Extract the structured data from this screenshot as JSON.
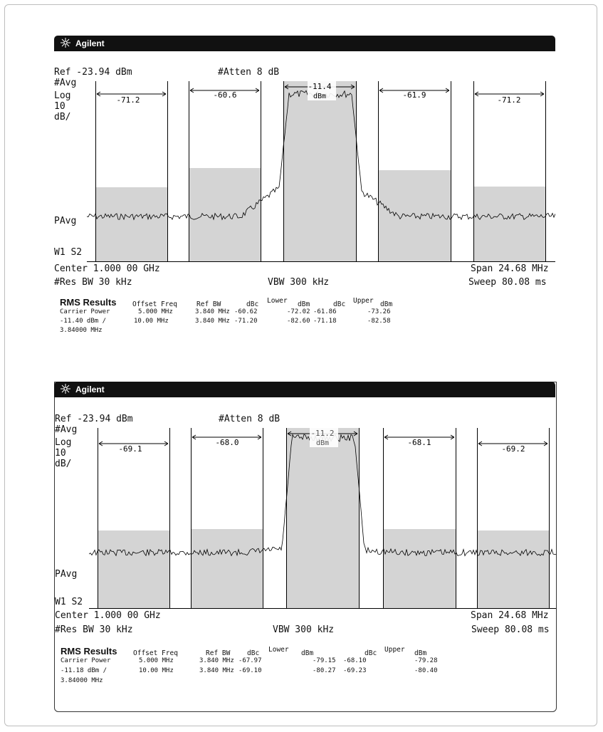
{
  "brand": "Agilent",
  "panels": [
    {
      "ref": "Ref -23.94 dBm",
      "atten": "#Atten 8 dB",
      "left_labels": {
        "avg": "#Avg",
        "log": "Log",
        "scale": "10",
        "unit": "dB/"
      },
      "pavg": "PAvg",
      "w1s2": "W1  S2",
      "center": "Center 1.000 00 GHz",
      "span": "Span 24.68 MHz",
      "res_bw": "#Res BW 30 kHz",
      "vbw": "VBW 300 kHz",
      "sweep": "Sweep 80.08 ms",
      "carrier_label": [
        "-11.4",
        "dBm"
      ],
      "channel_labels": [
        "-71.2",
        "-60.6",
        "-61.9",
        "-71.2"
      ],
      "rms": {
        "title": "RMS Results",
        "col_offset": "Offset Freq",
        "col_refbw": "Ref BW",
        "col_dbc_lower": "dBc",
        "lower": "Lower",
        "col_dbm_lower": "dBm",
        "col_dbc_upper": "dBc",
        "upper": "Upper",
        "col_dbm_upper": "dBm",
        "carrier_power": "Carrier Power",
        "carrier_value": "-11.40 dBm /",
        "carrier_bw": "3.84000 MHz",
        "rows": [
          {
            "offset": "5.000 MHz",
            "refbw": "3.840 MHz",
            "dbc_l": "-60.62",
            "dbm_l": "-72.02",
            "dbc_u": "-61.86",
            "dbm_u": "-73.26"
          },
          {
            "offset": "10.00 MHz",
            "refbw": "3.840 MHz",
            "dbc_l": "-71.20",
            "dbm_l": "-82.60",
            "dbc_u": "-71.18",
            "dbm_u": "-82.58"
          }
        ]
      }
    },
    {
      "ref": "Ref -23.94 dBm",
      "atten": "#Atten 8 dB",
      "left_labels": {
        "avg": "#Avg",
        "log": "Log",
        "scale": "10",
        "unit": "dB/"
      },
      "pavg": "PAvg",
      "w1s2": "W1  S2",
      "center": "Center 1.000 00 GHz",
      "span": "Span 24.68 MHz",
      "res_bw": "#Res BW 30 kHz",
      "vbw": "VBW 300 kHz",
      "sweep": "Sweep 80.08 ms",
      "carrier_label": [
        "-11.2",
        "dBm"
      ],
      "channel_labels": [
        "-69.1",
        "-68.0",
        "-68.1",
        "-69.2"
      ],
      "rms": {
        "title": "RMS Results",
        "col_offset": "Offset Freq",
        "col_refbw": "Ref BW",
        "col_dbc_lower": "dBc",
        "lower": "Lower",
        "col_dbm_lower": "dBm",
        "col_dbc_upper": "dBc",
        "upper": "Upper",
        "col_dbm_upper": "dBm",
        "carrier_power": "Carrier Power",
        "carrier_value": "-11.18 dBm /",
        "carrier_bw": "3.84000 MHz",
        "rows": [
          {
            "offset": "5.000 MHz",
            "refbw": "3.840 MHz",
            "dbc_l": "-67.97",
            "dbm_l": "-79.15",
            "dbc_u": "-68.10",
            "dbm_u": "-79.28"
          },
          {
            "offset": "10.00 MHz",
            "refbw": "3.840 MHz",
            "dbc_l": "-69.10",
            "dbm_l": "-80.27",
            "dbc_u": "-69.23",
            "dbm_u": "-80.40"
          }
        ]
      }
    }
  ]
}
